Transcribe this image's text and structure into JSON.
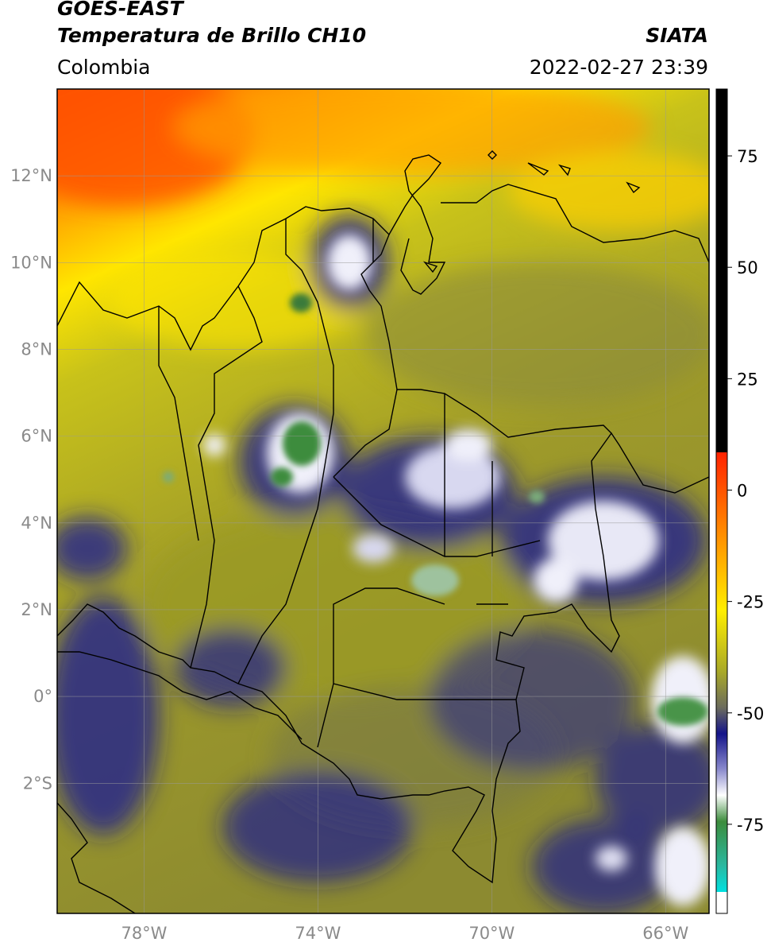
{
  "header": {
    "title_line1": "GOES-EAST",
    "title_line2": "Temperatura de Brillo CH10",
    "brand": "SIATA",
    "region": "Colombia",
    "datetime": "2022-02-27 23:39"
  },
  "map": {
    "latitude_labels": [
      {
        "text": "12°N",
        "value": 12
      },
      {
        "text": "10°N",
        "value": 10
      },
      {
        "text": "8°N",
        "value": 8
      },
      {
        "text": "6°N",
        "value": 6
      },
      {
        "text": "4°N",
        "value": 4
      },
      {
        "text": "2°N",
        "value": 2
      },
      {
        "text": "0°",
        "value": 0
      },
      {
        "text": "2°S",
        "value": -2
      }
    ],
    "longitude_labels": [
      {
        "text": "78°W",
        "value": -78
      },
      {
        "text": "74°W",
        "value": -74
      },
      {
        "text": "70°W",
        "value": -70
      },
      {
        "text": "66°W",
        "value": -66
      }
    ],
    "extent": {
      "lon_min": -80,
      "lon_max": -65,
      "lat_min": -5,
      "lat_max": 14
    },
    "colors": {
      "warm_high": "#ff5a00",
      "orange": "#ff9a00",
      "yellow": "#ffee00",
      "olive": "#b5b51c",
      "gray_olive": "#7e7e46",
      "navy": "#1a1a8a",
      "white": "#f2f2fa",
      "green": "#3a8a3a"
    }
  },
  "colorbar": {
    "ticks": [
      {
        "text": "75",
        "value": 75
      },
      {
        "text": "50",
        "value": 50
      },
      {
        "text": "25",
        "value": 25
      },
      {
        "text": "0",
        "value": 0
      },
      {
        "text": "-25",
        "value": -25
      },
      {
        "text": "-50",
        "value": -50
      },
      {
        "text": "-75",
        "value": -75
      }
    ],
    "range": [
      -95,
      90
    ]
  }
}
